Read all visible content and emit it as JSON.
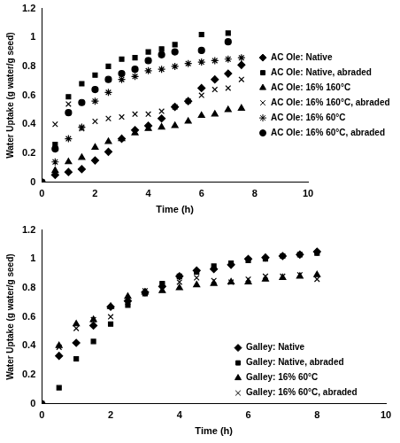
{
  "chart_data": [
    {
      "type": "scatter",
      "x_label": "Time (h)",
      "y_label": "Water Uptake (g water/g seed)",
      "xlim": [
        0,
        10
      ],
      "xticks": [
        0,
        2,
        4,
        6,
        8,
        10
      ],
      "ylim": [
        0,
        1.2
      ],
      "yticks": [
        0,
        0.2,
        0.4,
        0.6,
        0.8,
        1,
        1.2
      ],
      "grid": false,
      "legend": "right",
      "series": [
        {
          "name": "AC Ole: Native",
          "marker": "diamond",
          "color": "#000000",
          "x": [
            0,
            0.5,
            1,
            1.5,
            2,
            2.5,
            3,
            3.5,
            4,
            4.5,
            5,
            5.5,
            6,
            6.5,
            7,
            7.5
          ],
          "values": [
            0,
            0.05,
            0.07,
            0.09,
            0.15,
            0.21,
            0.3,
            0.36,
            0.39,
            0.44,
            0.52,
            0.56,
            0.65,
            0.71,
            0.75,
            0.81
          ]
        },
        {
          "name": "AC Ole: Native, abraded",
          "marker": "square",
          "color": "#000000",
          "x": [
            0,
            0.5,
            1,
            1.5,
            2,
            2.5,
            3,
            3.5,
            4,
            4.5,
            5,
            6,
            7
          ],
          "values": [
            0,
            0.26,
            0.59,
            0.68,
            0.74,
            0.8,
            0.85,
            0.86,
            0.9,
            0.92,
            0.95,
            1.02,
            1.03
          ]
        },
        {
          "name": "AC Ole: 16% 160°C",
          "marker": "triangle",
          "color": "#000000",
          "x": [
            0,
            0.5,
            1,
            1.5,
            2,
            2.5,
            3,
            3.5,
            4,
            4.5,
            5,
            5.5,
            6,
            6.5,
            7,
            7.5
          ],
          "values": [
            0,
            0.08,
            0.14,
            0.17,
            0.24,
            0.28,
            0.3,
            0.34,
            0.37,
            0.38,
            0.39,
            0.42,
            0.46,
            0.47,
            0.5,
            0.51
          ]
        },
        {
          "name": "AC Ole: 16% 160°C, abraded",
          "marker": "cross",
          "color": "#000000",
          "x": [
            0,
            0.5,
            1,
            1.5,
            2,
            2.5,
            3,
            3.5,
            4,
            4.5,
            5,
            5.5,
            6,
            6.5,
            7,
            7.5
          ],
          "values": [
            0,
            0.4,
            0.54,
            0.37,
            0.42,
            0.44,
            0.45,
            0.47,
            0.47,
            0.49,
            0.52,
            0.56,
            0.6,
            0.64,
            0.65,
            0.71
          ]
        },
        {
          "name": "AC Ole: 16% 60°C",
          "marker": "star",
          "color": "#000000",
          "x": [
            0,
            0.5,
            1,
            1.5,
            2,
            2.5,
            3,
            3.5,
            4,
            4.5,
            5,
            5.5,
            6,
            6.5,
            7,
            7.5
          ],
          "values": [
            0,
            0.14,
            0.3,
            0.38,
            0.56,
            0.62,
            0.71,
            0.73,
            0.77,
            0.78,
            0.8,
            0.82,
            0.83,
            0.84,
            0.85,
            0.86
          ]
        },
        {
          "name": "AC Ole: 16% 60°C, abraded",
          "marker": "circle",
          "color": "#000000",
          "x": [
            0,
            0.5,
            1,
            1.5,
            2,
            2.5,
            3,
            3.5,
            4,
            4.5,
            5,
            6,
            7
          ],
          "values": [
            0,
            0.23,
            0.48,
            0.55,
            0.64,
            0.71,
            0.75,
            0.78,
            0.84,
            0.88,
            0.9,
            0.91,
            0.97
          ]
        }
      ]
    },
    {
      "type": "scatter",
      "x_label": "Time (h)",
      "y_label": "Water Uptake (g water/g seed)",
      "xlim": [
        0,
        10
      ],
      "xticks": [
        0,
        2,
        4,
        6,
        8,
        10
      ],
      "ylim": [
        0,
        1.2
      ],
      "yticks": [
        0,
        0.2,
        0.4,
        0.6,
        0.8,
        1,
        1.2
      ],
      "grid": false,
      "legend": "lower right",
      "series": [
        {
          "name": "Galley: Native",
          "marker": "diamond",
          "color": "#000000",
          "x": [
            0,
            0.5,
            1,
            1.5,
            2,
            2.5,
            3,
            3.5,
            4,
            4.5,
            5,
            5.5,
            6,
            6.5,
            7,
            7.5,
            8
          ],
          "values": [
            0,
            0.33,
            0.42,
            0.54,
            0.67,
            0.71,
            0.77,
            0.81,
            0.88,
            0.92,
            0.93,
            0.96,
            1,
            1.01,
            1.02,
            1.03,
            1.05
          ]
        },
        {
          "name": "Galley: Native, abraded",
          "marker": "square",
          "color": "#000000",
          "x": [
            0,
            0.5,
            1,
            1.5,
            2,
            2.5,
            3,
            3.5,
            4,
            4.5,
            5,
            5.5,
            6,
            6.5,
            7,
            7.5,
            8
          ],
          "values": [
            0,
            0.11,
            0.31,
            0.43,
            0.55,
            0.68,
            0.76,
            0.83,
            0.88,
            0.91,
            0.95,
            0.97,
            0.99,
            1,
            1.02,
            1.03,
            1.04
          ]
        },
        {
          "name": "Galley: 16% 60°C",
          "marker": "triangle",
          "color": "#000000",
          "x": [
            0,
            0.5,
            1,
            1.5,
            2,
            2.5,
            3,
            3.5,
            4,
            4.5,
            5,
            5.5,
            6,
            6.5,
            7,
            7.5,
            8
          ],
          "values": [
            0,
            0.4,
            0.55,
            0.58,
            0.67,
            0.74,
            0.77,
            0.78,
            0.8,
            0.82,
            0.83,
            0.84,
            0.84,
            0.86,
            0.87,
            0.88,
            0.89
          ]
        },
        {
          "name": "Galley: 16% 60°C, abraded",
          "marker": "cross",
          "color": "#000000",
          "x": [
            0,
            0.5,
            1,
            1.5,
            2,
            2.5,
            3,
            3.5,
            4,
            4.5,
            5,
            5.5,
            6,
            6.5,
            7,
            7.5,
            8
          ],
          "values": [
            0,
            0.39,
            0.52,
            0.58,
            0.6,
            0.7,
            0.78,
            0.82,
            0.84,
            0.87,
            0.85,
            0.84,
            0.86,
            0.88,
            0.88,
            0.89,
            0.86
          ]
        }
      ]
    }
  ]
}
